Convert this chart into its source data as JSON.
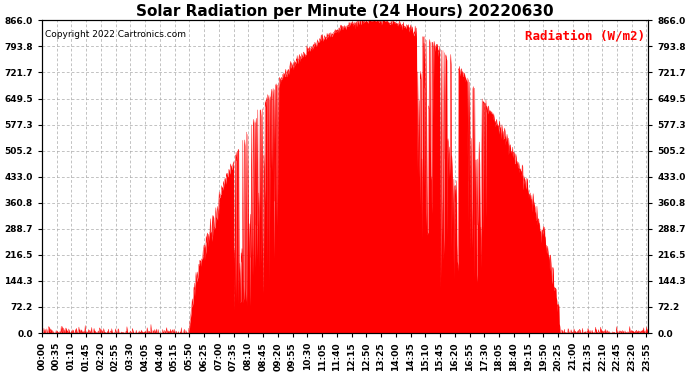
{
  "title": "Solar Radiation per Minute (24 Hours) 20220630",
  "ylabel": "Radiation (W/m2)",
  "copyright_text": "Copyright 2022 Cartronics.com",
  "fill_color": "#FF0000",
  "line_color": "#FF0000",
  "background_color": "#FFFFFF",
  "grid_color": "#AAAAAA",
  "yticks": [
    0.0,
    72.2,
    144.3,
    216.5,
    288.7,
    360.8,
    433.0,
    505.2,
    577.3,
    649.5,
    721.7,
    793.8,
    866.0
  ],
  "ymax": 866.0,
  "ymin": 0.0,
  "xtick_labels": [
    "00:00",
    "00:35",
    "01:10",
    "01:45",
    "02:20",
    "02:55",
    "03:30",
    "04:05",
    "04:40",
    "05:15",
    "05:50",
    "06:25",
    "07:00",
    "07:35",
    "08:10",
    "08:45",
    "09:20",
    "09:55",
    "10:30",
    "11:05",
    "11:40",
    "12:15",
    "12:50",
    "13:25",
    "14:00",
    "14:35",
    "15:10",
    "15:45",
    "16:20",
    "16:55",
    "17:30",
    "18:05",
    "18:40",
    "19:15",
    "19:50",
    "20:25",
    "21:00",
    "21:35",
    "22:10",
    "22:45",
    "23:20",
    "23:55"
  ],
  "title_fontsize": 11,
  "axis_label_fontsize": 9,
  "tick_fontsize": 6.5,
  "copyright_fontsize": 6.5
}
